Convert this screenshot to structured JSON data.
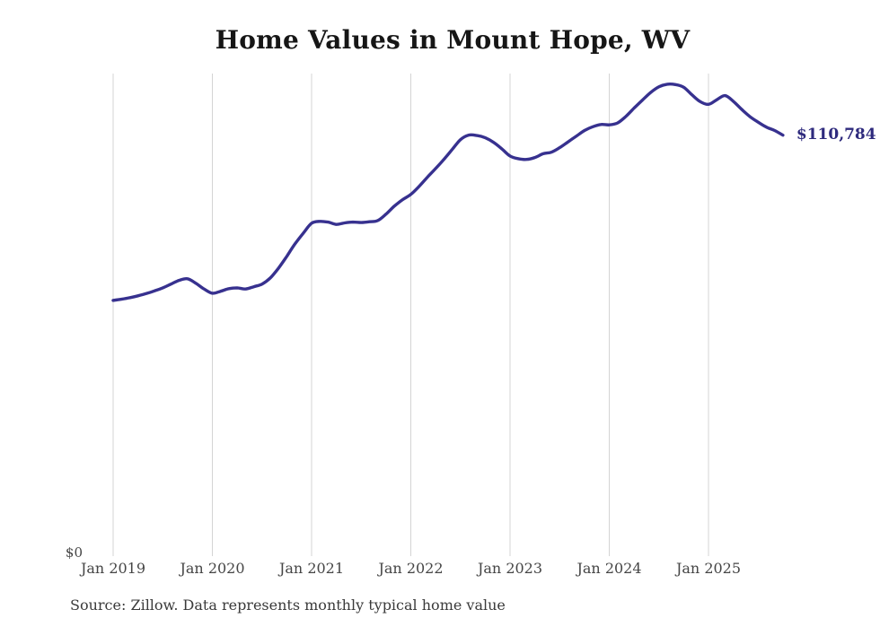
{
  "source_note": "Source: Zillow. Data represents monthly typical home value",
  "chart_data": {
    "type": "line",
    "title": "Home Values in Mount Hope, WV",
    "x_start": "Jan 2019",
    "x_end": "Oct 2025",
    "x_interval": "monthly",
    "series": [
      {
        "name": "Typical home value",
        "values": [
          67300,
          67600,
          68000,
          68500,
          69100,
          69800,
          70600,
          71600,
          72600,
          73000,
          71800,
          70300,
          69200,
          69700,
          70400,
          70600,
          70300,
          70900,
          71600,
          73200,
          75800,
          78900,
          82200,
          85000,
          87600,
          88100,
          87900,
          87300,
          87700,
          87900,
          87800,
          88000,
          88300,
          90000,
          92100,
          93800,
          95200,
          97300,
          99700,
          102000,
          104400,
          107000,
          109600,
          110800,
          110700,
          110100,
          108900,
          107200,
          105300,
          104600,
          104400,
          104900,
          105900,
          106300,
          107500,
          109000,
          110500,
          112000,
          113000,
          113600,
          113500,
          114000,
          115700,
          117900,
          120000,
          122000,
          123500,
          124200,
          124100,
          123400,
          121400,
          119600,
          118900,
          120100,
          121200,
          119700,
          117600,
          115700,
          114200,
          112900,
          112000,
          110784
        ]
      }
    ],
    "x_tick_labels": [
      "Jan 2019",
      "Jan 2020",
      "Jan 2021",
      "Jan 2022",
      "Jan 2023",
      "Jan 2024",
      "Jan 2025"
    ],
    "y_axis": {
      "zero_label": "$0",
      "ylim": [
        0,
        127000
      ],
      "gridlines": "vertical only"
    },
    "end_label": "$110,784",
    "last_value": 110784,
    "legend": "none",
    "colors": {
      "line": "#37318f",
      "end_label": "#2e2a7d",
      "gridline": "#d4d4d4",
      "title": "#161616",
      "tick_label": "#454545",
      "source": "#3a3a3a"
    }
  }
}
